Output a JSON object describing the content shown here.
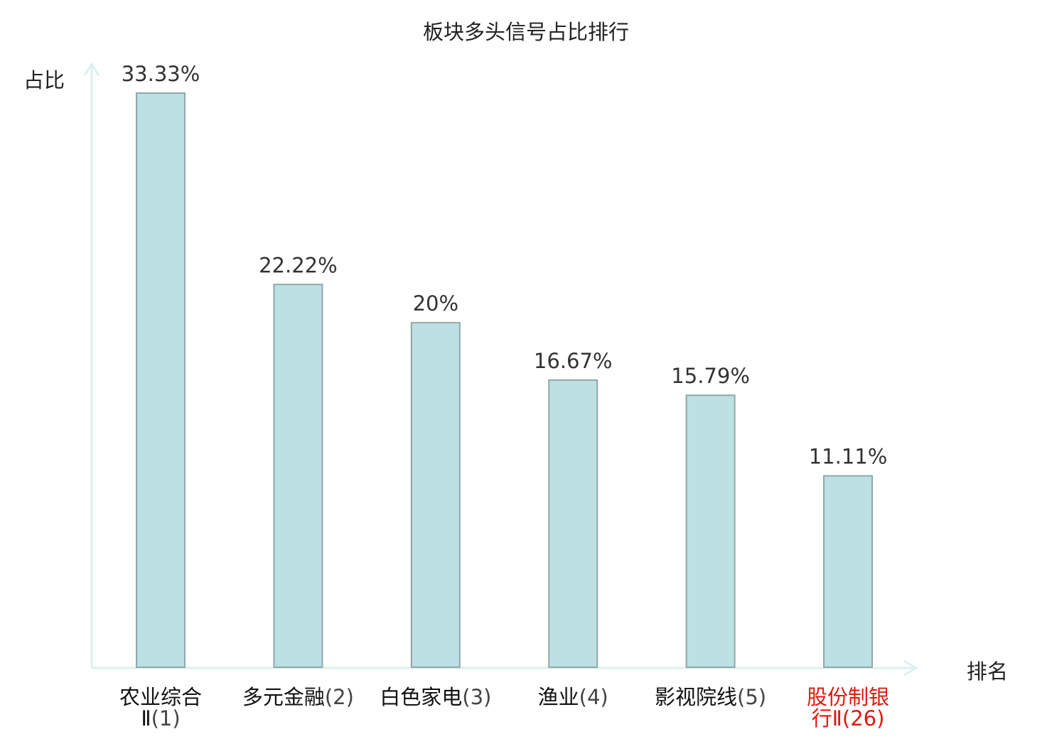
{
  "chart_data": {
    "type": "bar",
    "title": "板块多头信号占比排行",
    "ylabel": "占比",
    "xlabel": "排名",
    "ylim": [
      0,
      33.33
    ],
    "grid": false,
    "value_suffix": "%",
    "categories": [
      {
        "name": "农业综合Ⅱ",
        "rank": "(1)",
        "highlight": false
      },
      {
        "name": "多元金融",
        "rank": "(2)",
        "highlight": false
      },
      {
        "name": "白色家电",
        "rank": "(3)",
        "highlight": false
      },
      {
        "name": "渔业",
        "rank": "(4)",
        "highlight": false
      },
      {
        "name": "影视院线",
        "rank": "(5)",
        "highlight": false
      },
      {
        "name": "股份制银行Ⅱ",
        "rank": "(26)",
        "highlight": true
      }
    ],
    "values": [
      33.33,
      22.22,
      20,
      16.67,
      15.79,
      11.11
    ],
    "value_labels": [
      "33.33%",
      "22.22%",
      "20%",
      "16.67%",
      "15.79%",
      "11.11%"
    ],
    "colors": {
      "bar_fill": "#bde0e3",
      "bar_stroke": "#8ea8aa",
      "axis": "#ddf0ee",
      "highlight": "#e0190f"
    }
  }
}
